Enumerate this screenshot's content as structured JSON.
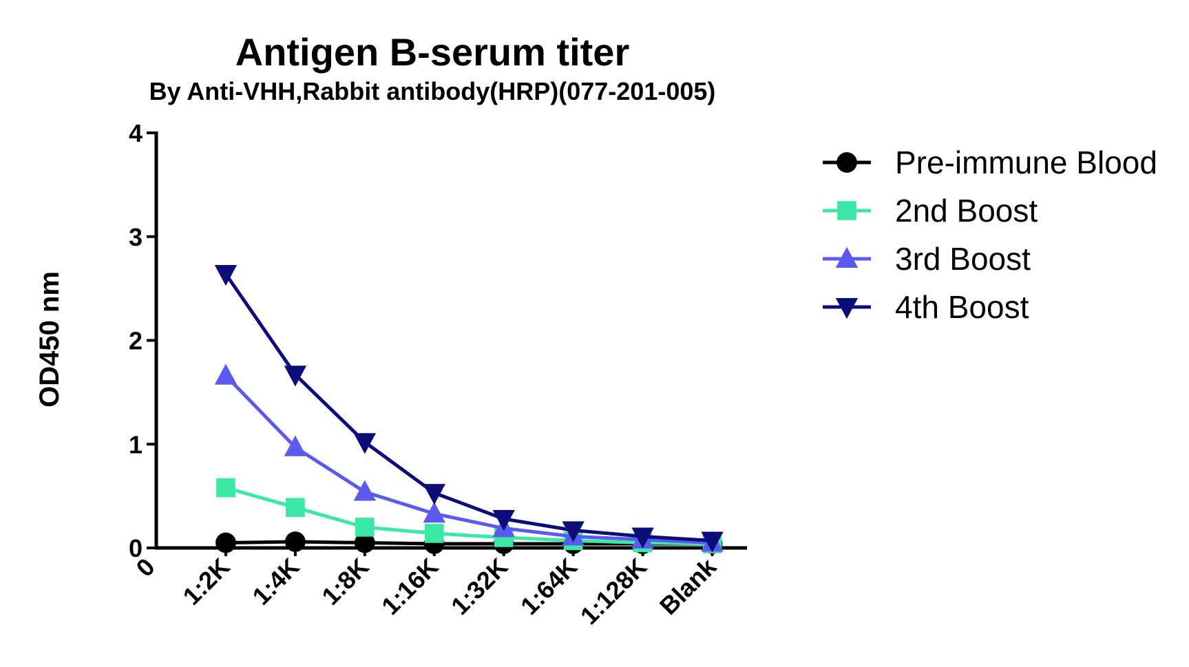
{
  "chart_data": {
    "type": "line",
    "title": "Antigen B-serum titer",
    "subtitle": "By Anti-VHH,Rabbit antibody(HRP)(077-201-005)",
    "xlabel": "",
    "ylabel": "OD450 nm",
    "origin_label": "0",
    "categories": [
      "1:2K",
      "1:4K",
      "1:8K",
      "1:16K",
      "1:32K",
      "1:64K",
      "1:128K",
      "Blank"
    ],
    "ylim": [
      0,
      4
    ],
    "yticks": [
      0,
      1,
      2,
      3,
      4
    ],
    "grid": false,
    "legend_position": "right",
    "series": [
      {
        "name": "Pre-immune Blood",
        "marker": "circle",
        "color": "#000000",
        "values": [
          0.05,
          0.06,
          0.05,
          0.04,
          0.04,
          0.04,
          0.04,
          0.04
        ]
      },
      {
        "name": "2nd Boost",
        "marker": "square",
        "color": "#3CE8A5",
        "values": [
          0.58,
          0.39,
          0.2,
          0.14,
          0.1,
          0.07,
          0.05,
          0.04
        ]
      },
      {
        "name": "3rd Boost",
        "marker": "triangle-up",
        "color": "#5A5AF0",
        "values": [
          1.66,
          0.97,
          0.54,
          0.33,
          0.19,
          0.11,
          0.08,
          0.05
        ]
      },
      {
        "name": "4th Boost",
        "marker": "triangle-down",
        "color": "#0D0D7A",
        "values": [
          2.64,
          1.67,
          1.02,
          0.53,
          0.28,
          0.17,
          0.11,
          0.07
        ]
      }
    ]
  }
}
